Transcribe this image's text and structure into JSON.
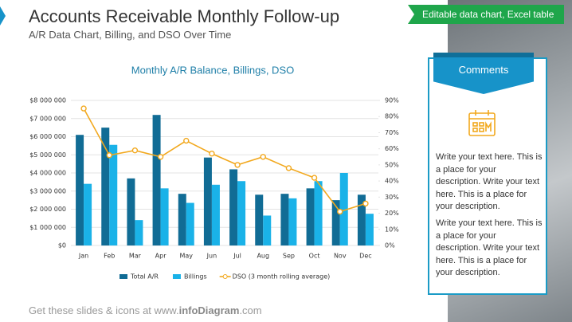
{
  "header": {
    "title": "Accounts Receivable Monthly Follow-up",
    "subtitle": "A/R Data Chart, Billing, and DSO Over Time",
    "badge": "Editable data chart, Excel table"
  },
  "chart_data": {
    "type": "bar",
    "title": "Monthly A/R Balance, Billings, DSO",
    "categories": [
      "Jan",
      "Feb",
      "Mar",
      "Apr",
      "May",
      "Jun",
      "Jul",
      "Aug",
      "Sep",
      "Oct",
      "Nov",
      "Dec"
    ],
    "series": [
      {
        "name": "Total A/R",
        "color": "#116c95",
        "values": [
          6100000,
          6500000,
          3700000,
          7200000,
          2850000,
          4850000,
          4200000,
          2800000,
          2850000,
          3150000,
          2500000,
          2800000
        ]
      },
      {
        "name": "Billings",
        "color": "#1ab2e8",
        "values": [
          3400000,
          5550000,
          1400000,
          3150000,
          2350000,
          3350000,
          3550000,
          1650000,
          2600000,
          3550000,
          4000000,
          1750000
        ]
      },
      {
        "name": "DSO (3 month rolling average)",
        "color": "#f2a81d",
        "type": "line",
        "axis": "y2",
        "values": [
          85,
          56,
          59,
          55,
          65,
          57,
          50,
          55,
          48,
          42,
          21,
          26
        ]
      }
    ],
    "ylim": [
      0,
      8000000
    ],
    "yticks": [
      {
        "value": 0,
        "label": "$0"
      },
      {
        "value": 1000000,
        "label": "$1 000 000"
      },
      {
        "value": 2000000,
        "label": "$2 000 000"
      },
      {
        "value": 3000000,
        "label": "$3 000 000"
      },
      {
        "value": 4000000,
        "label": "$4 000 000"
      },
      {
        "value": 5000000,
        "label": "$5 000 000"
      },
      {
        "value": 6000000,
        "label": "$6 000 000"
      },
      {
        "value": 7000000,
        "label": "$7 000 000"
      },
      {
        "value": 8000000,
        "label": "$8 000 000"
      }
    ],
    "y2lim": [
      0,
      90
    ],
    "y2ticks": [
      {
        "value": 0,
        "label": "0%"
      },
      {
        "value": 10,
        "label": "10%"
      },
      {
        "value": 20,
        "label": "20%"
      },
      {
        "value": 30,
        "label": "30%"
      },
      {
        "value": 40,
        "label": "40%"
      },
      {
        "value": 50,
        "label": "50%"
      },
      {
        "value": 60,
        "label": "60%"
      },
      {
        "value": 70,
        "label": "70%"
      },
      {
        "value": 80,
        "label": "80%"
      },
      {
        "value": 90,
        "label": "90%"
      }
    ],
    "grid": true,
    "legend": "bottom"
  },
  "comments": {
    "title": "Comments",
    "paragraphs": [
      "Write your text here. This is a place for your description. Write your text here. This is a place for your description.",
      "Write your text here. This is a place for your description. Write your text here. This is a place for your description."
    ]
  },
  "footer": {
    "prefix": "Get these slides & icons at www.",
    "brand": "infoDiagram",
    "suffix": ".com"
  }
}
